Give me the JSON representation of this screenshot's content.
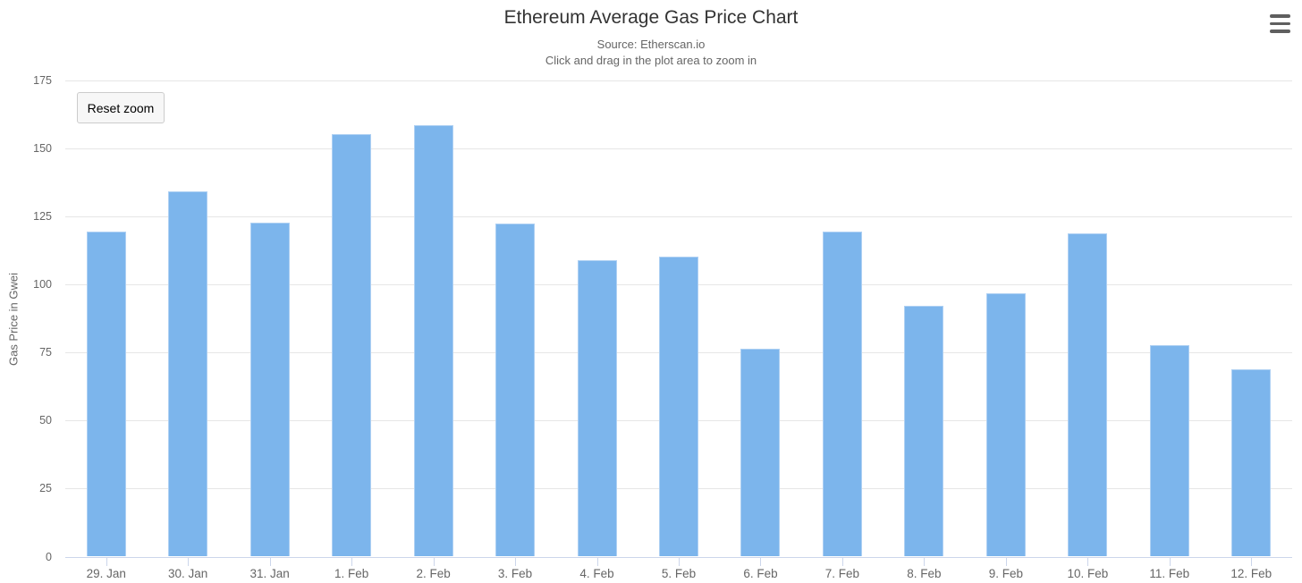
{
  "chart": {
    "controls": {
      "reset_zoom_label": "Reset zoom",
      "menu_icon": "hamburger-icon"
    },
    "colors": {
      "bar_fill": "#7cb5ec",
      "bar_border": "#aed0f3",
      "gridline": "#e6e6e6",
      "axis_line": "#ccd6eb",
      "title_text": "#333333",
      "secondary_text": "#666666"
    }
  },
  "chart_data": {
    "type": "bar",
    "title": "Ethereum Average Gas Price Chart",
    "subtitle": [
      "Source: Etherscan.io",
      "Click and drag in the plot area to zoom in"
    ],
    "categories": [
      "29. Jan",
      "30. Jan",
      "31. Jan",
      "1. Feb",
      "2. Feb",
      "3. Feb",
      "4. Feb",
      "5. Feb",
      "6. Feb",
      "7. Feb",
      "8. Feb",
      "9. Feb",
      "10. Feb",
      "11. Feb",
      "12. Feb"
    ],
    "values": [
      119.4,
      134.2,
      122.6,
      155.4,
      158.6,
      122.4,
      109.1,
      110.2,
      76.4,
      119.4,
      92.3,
      96.8,
      118.7,
      77.7,
      68.7
    ],
    "xlabel": "",
    "ylabel": "Gas Price in Gwei",
    "ylim": [
      0,
      175
    ],
    "ytick_interval": 25,
    "yticks": [
      0,
      25,
      50,
      75,
      100,
      125,
      150,
      175
    ],
    "grid": true,
    "legend": false,
    "bar_color": "#7cb5ec"
  }
}
